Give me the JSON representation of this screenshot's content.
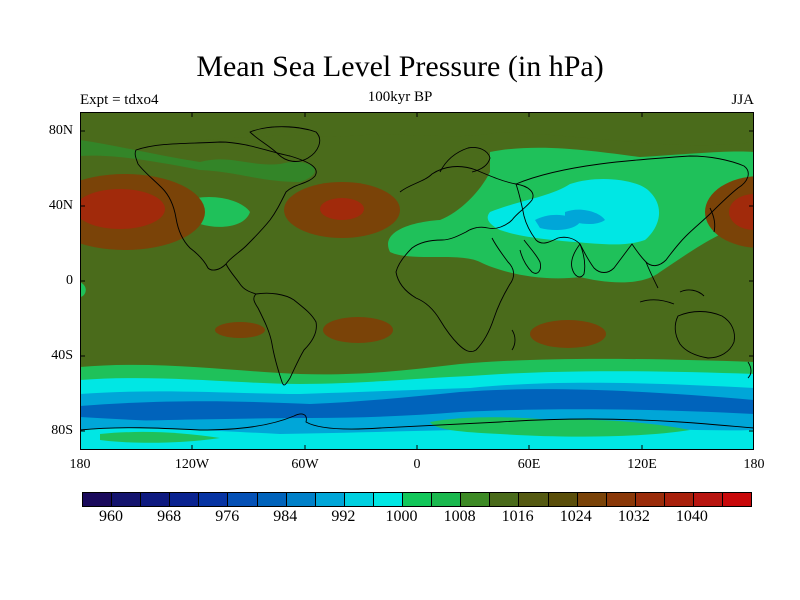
{
  "title": "Mean Sea Level Pressure (in hPa)",
  "subtitle": "100kyr BP",
  "left_label": "Expt = tdxo4",
  "right_label": "JJA",
  "map": {
    "projection": "cylindrical-equidistant",
    "lon_range": [
      -180,
      180
    ],
    "lat_range": [
      -90,
      90
    ],
    "y_ticks": [
      "80N",
      "40N",
      "0",
      "40S",
      "80S"
    ],
    "x_ticks": [
      "180",
      "120W",
      "60W",
      "0",
      "60E",
      "120E",
      "180"
    ],
    "field": "mean sea level pressure",
    "units": "hPa",
    "fill_colors": {
      "background": "#4a6b1b",
      "low_green": "#1fc15a",
      "cyan": "#00e7e4",
      "light_blue": "#00a6d8",
      "blue": "#0063bb",
      "orange_high": "#7a4308",
      "red_high": "#a12a0b",
      "coast": "#000000"
    }
  },
  "colorbar": {
    "colors": [
      "#1a0a5c",
      "#14146e",
      "#0e1a80",
      "#0a2390",
      "#0734a3",
      "#0551b6",
      "#0063bb",
      "#0080c8",
      "#00a6d8",
      "#00d0e0",
      "#00e7e4",
      "#12c75a",
      "#1ab84e",
      "#3d8a25",
      "#4a6b1b",
      "#555a12",
      "#5a4e0a",
      "#7a4308",
      "#8a3808",
      "#9a2c0a",
      "#a8200b",
      "#b81510",
      "#c8080a"
    ],
    "tick_labels": [
      "960",
      "968",
      "976",
      "984",
      "992",
      "1000",
      "1008",
      "1016",
      "1024",
      "1032",
      "1040"
    ]
  }
}
